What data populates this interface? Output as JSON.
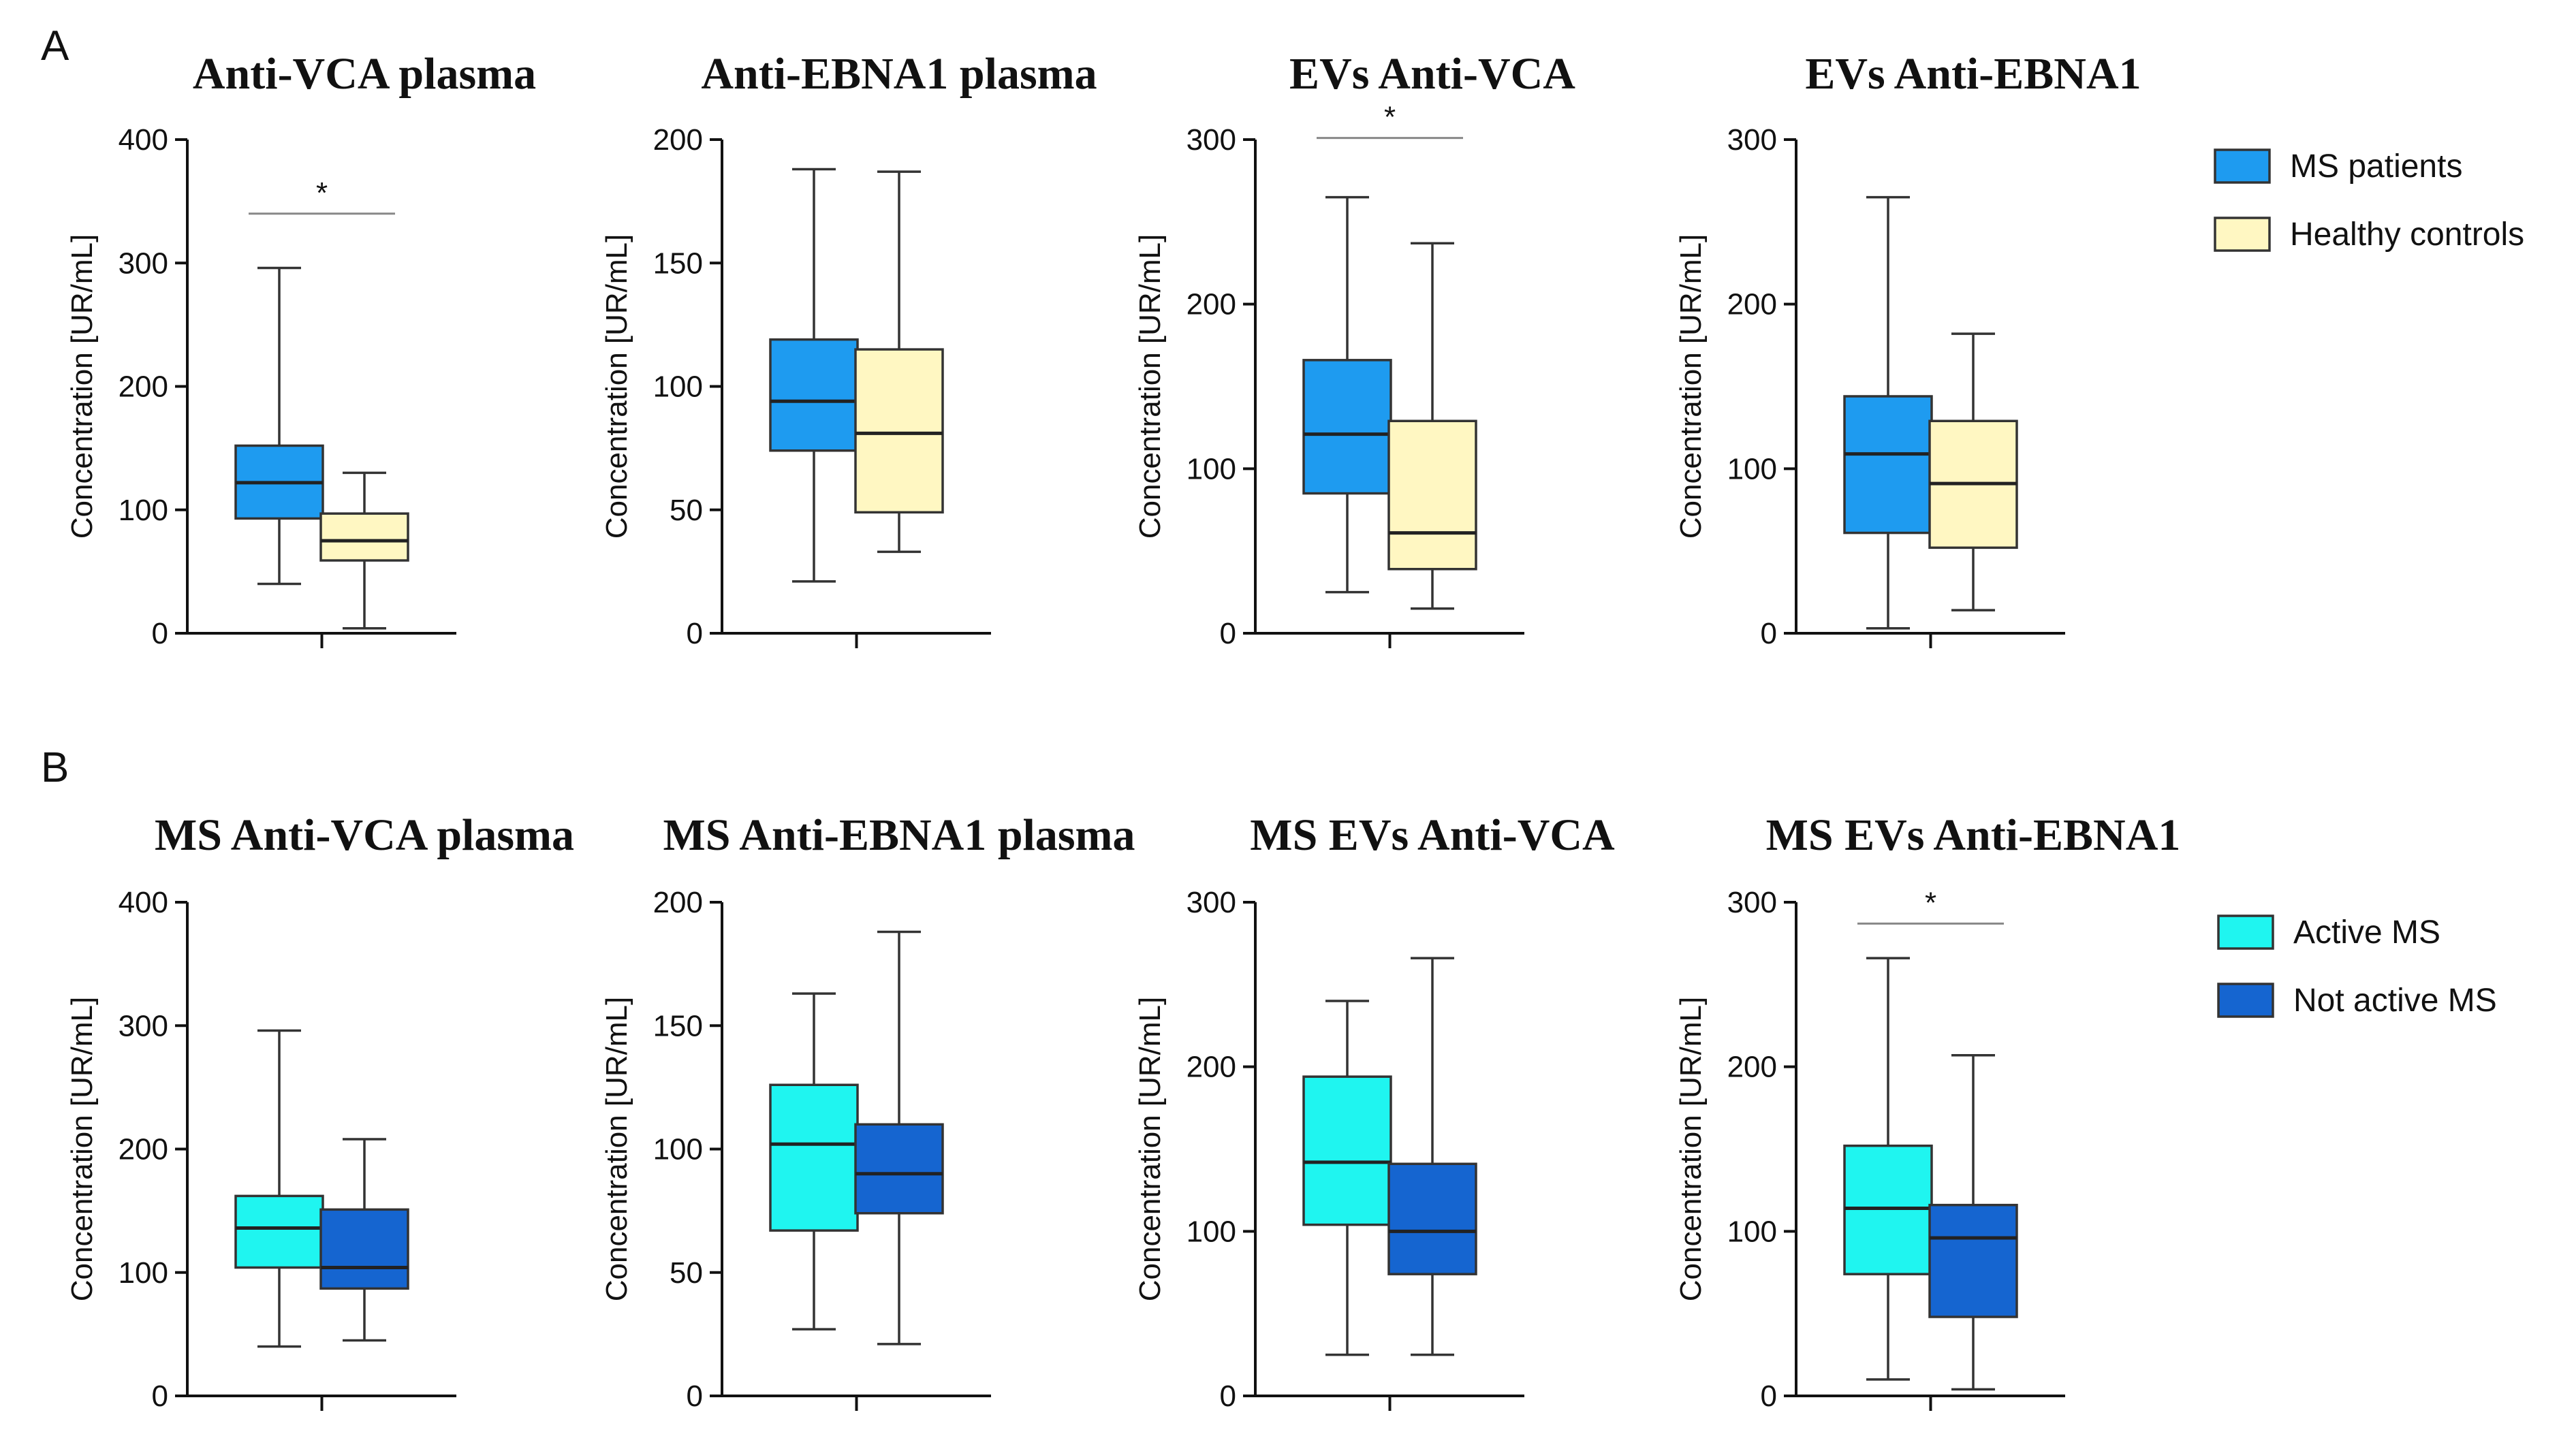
{
  "panels": [
    {
      "letter": "A"
    },
    {
      "letter": "B"
    }
  ],
  "legends": [
    {
      "items": [
        {
          "label": "MS patients",
          "color": "#1E9BF0"
        },
        {
          "label": "Healthy controls",
          "color": "#FFF7C2"
        }
      ]
    },
    {
      "items": [
        {
          "label": "Active MS",
          "color": "#1FF5F0"
        },
        {
          "label": "Not active MS",
          "color": "#1565D0"
        }
      ]
    }
  ],
  "chart_data": [
    {
      "type": "boxplot",
      "title": "Anti-VCA plasma",
      "ylabel": "Concentration [UR/mL]",
      "ylim": [
        0,
        400
      ],
      "yticks": [
        0,
        100,
        200,
        300,
        400
      ],
      "series": [
        {
          "name": "MS patients",
          "color": "#1E9BF0",
          "min": 40,
          "q1": 93,
          "median": 122,
          "q3": 152,
          "max": 296
        },
        {
          "name": "Healthy controls",
          "color": "#FFF7C2",
          "min": 4,
          "q1": 59,
          "median": 75,
          "q3": 97,
          "max": 130
        }
      ],
      "significance": {
        "label": "*",
        "from": 0,
        "to": 1,
        "y": 340
      }
    },
    {
      "type": "boxplot",
      "title": "Anti-EBNA1 plasma",
      "ylabel": "Concentration [UR/mL]",
      "ylim": [
        0,
        200
      ],
      "yticks": [
        0,
        50,
        100,
        150,
        200
      ],
      "series": [
        {
          "name": "MS patients",
          "color": "#1E9BF0",
          "min": 21,
          "q1": 74,
          "median": 94,
          "q3": 119,
          "max": 188
        },
        {
          "name": "Healthy controls",
          "color": "#FFF7C2",
          "min": 33,
          "q1": 49,
          "median": 81,
          "q3": 115,
          "max": 187
        }
      ]
    },
    {
      "type": "boxplot",
      "title": "EVs Anti-VCA",
      "ylabel": "Concentration [UR/mL]",
      "ylim": [
        0,
        300
      ],
      "yticks": [
        0,
        100,
        200,
        300
      ],
      "series": [
        {
          "name": "MS patients",
          "color": "#1E9BF0",
          "min": 25,
          "q1": 85,
          "median": 121,
          "q3": 166,
          "max": 265
        },
        {
          "name": "Healthy controls",
          "color": "#FFF7C2",
          "min": 15,
          "q1": 39,
          "median": 61,
          "q3": 129,
          "max": 237
        }
      ],
      "significance": {
        "label": "*",
        "from": 0,
        "to": 1,
        "y": 301
      }
    },
    {
      "type": "boxplot",
      "title": "EVs Anti-EBNA1",
      "ylabel": "Concentration [UR/mL]",
      "ylim": [
        0,
        300
      ],
      "yticks": [
        0,
        100,
        200,
        300
      ],
      "series": [
        {
          "name": "MS patients",
          "color": "#1E9BF0",
          "min": 3,
          "q1": 61,
          "median": 109,
          "q3": 144,
          "max": 265
        },
        {
          "name": "Healthy controls",
          "color": "#FFF7C2",
          "min": 14,
          "q1": 52,
          "median": 91,
          "q3": 129,
          "max": 182
        }
      ]
    },
    {
      "type": "boxplot",
      "title": "MS Anti-VCA plasma",
      "ylabel": "Concentration [UR/mL]",
      "ylim": [
        0,
        400
      ],
      "yticks": [
        0,
        100,
        200,
        300,
        400
      ],
      "series": [
        {
          "name": "Active MS",
          "color": "#1FF5F0",
          "min": 40,
          "q1": 104,
          "median": 136,
          "q3": 162,
          "max": 296
        },
        {
          "name": "Not active MS",
          "color": "#1565D0",
          "min": 45,
          "q1": 87,
          "median": 104,
          "q3": 151,
          "max": 208
        }
      ]
    },
    {
      "type": "boxplot",
      "title": "MS Anti-EBNA1 plasma",
      "ylabel": "Concentration [UR/mL]",
      "ylim": [
        0,
        200
      ],
      "yticks": [
        0,
        50,
        100,
        150,
        200
      ],
      "series": [
        {
          "name": "Active MS",
          "color": "#1FF5F0",
          "min": 27,
          "q1": 67,
          "median": 102,
          "q3": 126,
          "max": 163
        },
        {
          "name": "Not active MS",
          "color": "#1565D0",
          "min": 21,
          "q1": 74,
          "median": 90,
          "q3": 110,
          "max": 188
        }
      ]
    },
    {
      "type": "boxplot",
      "title": "MS EVs Anti-VCA",
      "ylabel": "Concentration [UR/mL]",
      "ylim": [
        0,
        300
      ],
      "yticks": [
        0,
        100,
        200,
        300
      ],
      "series": [
        {
          "name": "Active MS",
          "color": "#1FF5F0",
          "min": 25,
          "q1": 104,
          "median": 142,
          "q3": 194,
          "max": 240
        },
        {
          "name": "Not active MS",
          "color": "#1565D0",
          "min": 25,
          "q1": 74,
          "median": 100,
          "q3": 141,
          "max": 266
        }
      ]
    },
    {
      "type": "boxplot",
      "title": "MS EVs Anti-EBNA1",
      "ylabel": "Concentration [UR/mL]",
      "ylim": [
        0,
        300
      ],
      "yticks": [
        0,
        100,
        200,
        300
      ],
      "series": [
        {
          "name": "Active MS",
          "color": "#1FF5F0",
          "min": 10,
          "q1": 74,
          "median": 114,
          "q3": 152,
          "max": 266
        },
        {
          "name": "Not active MS",
          "color": "#1565D0",
          "min": 4,
          "q1": 48,
          "median": 96,
          "q3": 116,
          "max": 207
        }
      ],
      "significance": {
        "label": "*",
        "from": 0,
        "to": 1,
        "y": 287
      }
    }
  ]
}
